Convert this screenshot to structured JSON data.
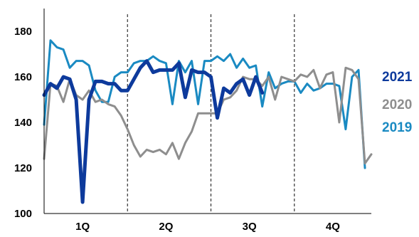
{
  "chart_data": {
    "type": "line",
    "title": "",
    "xlabel": "",
    "ylabel": "",
    "ylim": [
      100,
      190
    ],
    "yticks": [
      100,
      120,
      140,
      160,
      180
    ],
    "xlim": [
      1,
      52
    ],
    "quarters": [
      {
        "label": "1Q",
        "center": 7
      },
      {
        "label": "2Q",
        "center": 20
      },
      {
        "label": "3Q",
        "center": 33
      },
      {
        "label": "4Q",
        "center": 46
      }
    ],
    "quarter_dividers": [
      14,
      27,
      40
    ],
    "grid": false,
    "legend": "right",
    "series": [
      {
        "name": "2021",
        "color": "#0d3a9c",
        "stroke": 5,
        "x": [
          1,
          2,
          3,
          4,
          5,
          6,
          7,
          8,
          9,
          10,
          11,
          12,
          13,
          14,
          15,
          16,
          17,
          18,
          19,
          20,
          21,
          22,
          23,
          24,
          25,
          26,
          27,
          28,
          29,
          30,
          31,
          32,
          33,
          34,
          35
        ],
        "y": [
          152,
          157,
          155,
          160,
          159,
          150,
          105,
          150,
          158,
          158,
          157,
          157,
          154,
          154,
          159,
          164,
          167,
          162,
          163,
          163,
          163,
          166,
          151,
          163,
          162,
          162,
          160,
          142,
          155,
          153,
          157,
          159,
          152,
          160,
          153
        ]
      },
      {
        "name": "2020",
        "color": "#8e8e8e",
        "stroke": 3,
        "x": [
          1,
          2,
          3,
          4,
          5,
          6,
          7,
          8,
          9,
          10,
          11,
          12,
          13,
          14,
          15,
          16,
          17,
          18,
          19,
          20,
          21,
          22,
          23,
          24,
          25,
          26,
          27,
          28,
          29,
          30,
          31,
          32,
          33,
          34,
          35,
          36,
          37,
          38,
          39,
          40,
          41,
          42,
          43,
          44,
          45,
          46,
          47,
          48,
          49,
          50,
          51,
          52
        ],
        "y": [
          124,
          157,
          156,
          149,
          159,
          152,
          150,
          154,
          149,
          150,
          148,
          147,
          143,
          137,
          130,
          125,
          128,
          127,
          128,
          126,
          131,
          124,
          131,
          136,
          144,
          144,
          144,
          144,
          150,
          151,
          154,
          160,
          159,
          159,
          156,
          160,
          150,
          160,
          159,
          158,
          161,
          160,
          163,
          155,
          161,
          162,
          140,
          164,
          163,
          159,
          122,
          126
        ]
      },
      {
        "name": "2019",
        "color": "#1a8ac2",
        "stroke": 3,
        "x": [
          1,
          2,
          3,
          4,
          5,
          6,
          7,
          8,
          9,
          10,
          11,
          12,
          13,
          14,
          15,
          16,
          17,
          18,
          19,
          20,
          21,
          22,
          23,
          24,
          25,
          26,
          27,
          28,
          29,
          30,
          31,
          32,
          33,
          34,
          35,
          36,
          37,
          38,
          39,
          40,
          41,
          42,
          43,
          44,
          45,
          46,
          47,
          48,
          49,
          50,
          51
        ],
        "y": [
          139,
          176,
          173,
          172,
          164,
          167,
          167,
          165,
          154,
          149,
          149,
          160,
          162,
          162,
          166,
          167,
          167,
          169,
          167,
          166,
          148,
          167,
          162,
          167,
          148,
          167,
          167,
          169,
          167,
          170,
          164,
          168,
          164,
          165,
          147,
          162,
          155,
          157,
          158,
          158,
          153,
          157,
          154,
          155,
          157,
          157,
          156,
          137,
          160,
          163,
          120
        ]
      }
    ]
  }
}
